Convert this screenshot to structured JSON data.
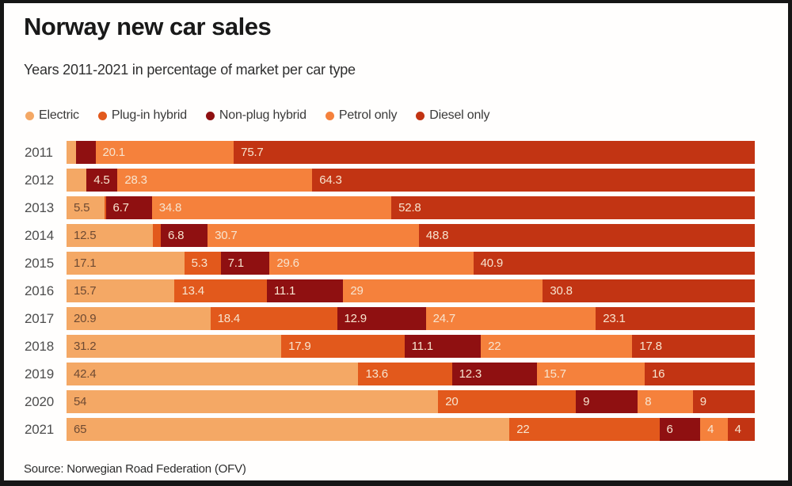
{
  "header": {
    "title": "Norway new car sales",
    "subtitle": "Years 2011-2021 in percentage of market per car type"
  },
  "legend": [
    {
      "label": "Electric",
      "color": "#f4a865"
    },
    {
      "label": "Plug-in hybrid",
      "color": "#e2591c"
    },
    {
      "label": "Non-plug hybrid",
      "color": "#8f1011"
    },
    {
      "label": "Petrol only",
      "color": "#f5813c"
    },
    {
      "label": "Diesel only",
      "color": "#c23413"
    }
  ],
  "source": "Source: Norwegian Road Federation (OFV)",
  "chart_data": {
    "type": "bar",
    "variant": "stacked-horizontal",
    "unit": "percent of market",
    "xlim": [
      0,
      100
    ],
    "grid": false,
    "legend_position": "top",
    "title": "Norway new car sales",
    "subtitle": "Years 2011-2021 in percentage of market per car type",
    "source": "Source: Norwegian Road Federation (OFV)",
    "categories": [
      "2011",
      "2012",
      "2013",
      "2014",
      "2015",
      "2016",
      "2017",
      "2018",
      "2019",
      "2020",
      "2021"
    ],
    "series": [
      {
        "name": "Electric",
        "color": "#f4a865",
        "values": [
          1.4,
          2.9,
          5.5,
          12.5,
          17.1,
          15.7,
          20.9,
          31.2,
          42.4,
          54,
          65
        ],
        "labels": [
          "",
          "",
          "5.5",
          "12.5",
          "17.1",
          "15.7",
          "20.9",
          "31.2",
          "42.4",
          "54",
          "65"
        ]
      },
      {
        "name": "Plug-in hybrid",
        "color": "#e2591c",
        "values": [
          0,
          0,
          0.2,
          1.2,
          5.3,
          13.4,
          18.4,
          17.9,
          13.6,
          20,
          22
        ],
        "labels": [
          "",
          "",
          "",
          "",
          "5.3",
          "13.4",
          "18.4",
          "17.9",
          "13.6",
          "20",
          "22"
        ]
      },
      {
        "name": "Non-plug hybrid",
        "color": "#8f1011",
        "values": [
          2.8,
          4.5,
          6.7,
          6.8,
          7.1,
          11.1,
          12.9,
          11.1,
          12.3,
          9,
          6
        ],
        "labels": [
          "",
          "4.5",
          "6.7",
          "6.8",
          "7.1",
          "11.1",
          "12.9",
          "11.1",
          "12.3",
          "9",
          "6"
        ]
      },
      {
        "name": "Petrol only",
        "color": "#f5813c",
        "values": [
          20.1,
          28.3,
          34.8,
          30.7,
          29.6,
          29,
          24.7,
          22,
          15.7,
          8,
          4
        ],
        "labels": [
          "20.1",
          "28.3",
          "34.8",
          "30.7",
          "29.6",
          "29",
          "24.7",
          "22",
          "15.7",
          "8",
          "4"
        ]
      },
      {
        "name": "Diesel only",
        "color": "#c23413",
        "values": [
          75.7,
          64.3,
          52.8,
          48.8,
          40.9,
          30.8,
          23.1,
          17.8,
          16,
          9,
          4
        ],
        "labels": [
          "75.7",
          "64.3",
          "52.8",
          "48.8",
          "40.9",
          "30.8",
          "23.1",
          "17.8",
          "16",
          "9",
          "4"
        ]
      }
    ]
  }
}
